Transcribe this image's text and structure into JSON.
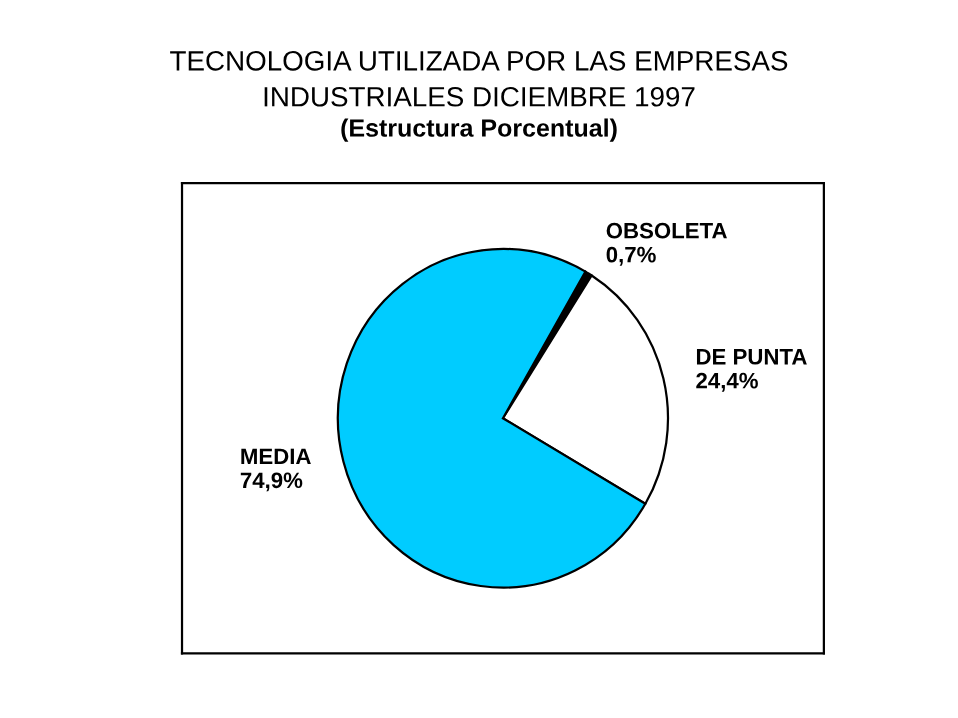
{
  "chart_data": {
    "type": "pie",
    "title": "TECNOLOGIA UTILIZADA POR LAS EMPRESAS\nINDUSTRIALES DICIEMBRE 1997",
    "subtitle": "(Estructura Porcentual)",
    "categories": [
      "OBSOLETA",
      "DE PUNTA",
      "MEDIA"
    ],
    "values": [
      0.7,
      24.4,
      74.9
    ],
    "value_labels": [
      "0,7%",
      "24,4%",
      "74,9%"
    ],
    "colors": [
      "#000000",
      "#ffffff",
      "#00ccff"
    ]
  }
}
